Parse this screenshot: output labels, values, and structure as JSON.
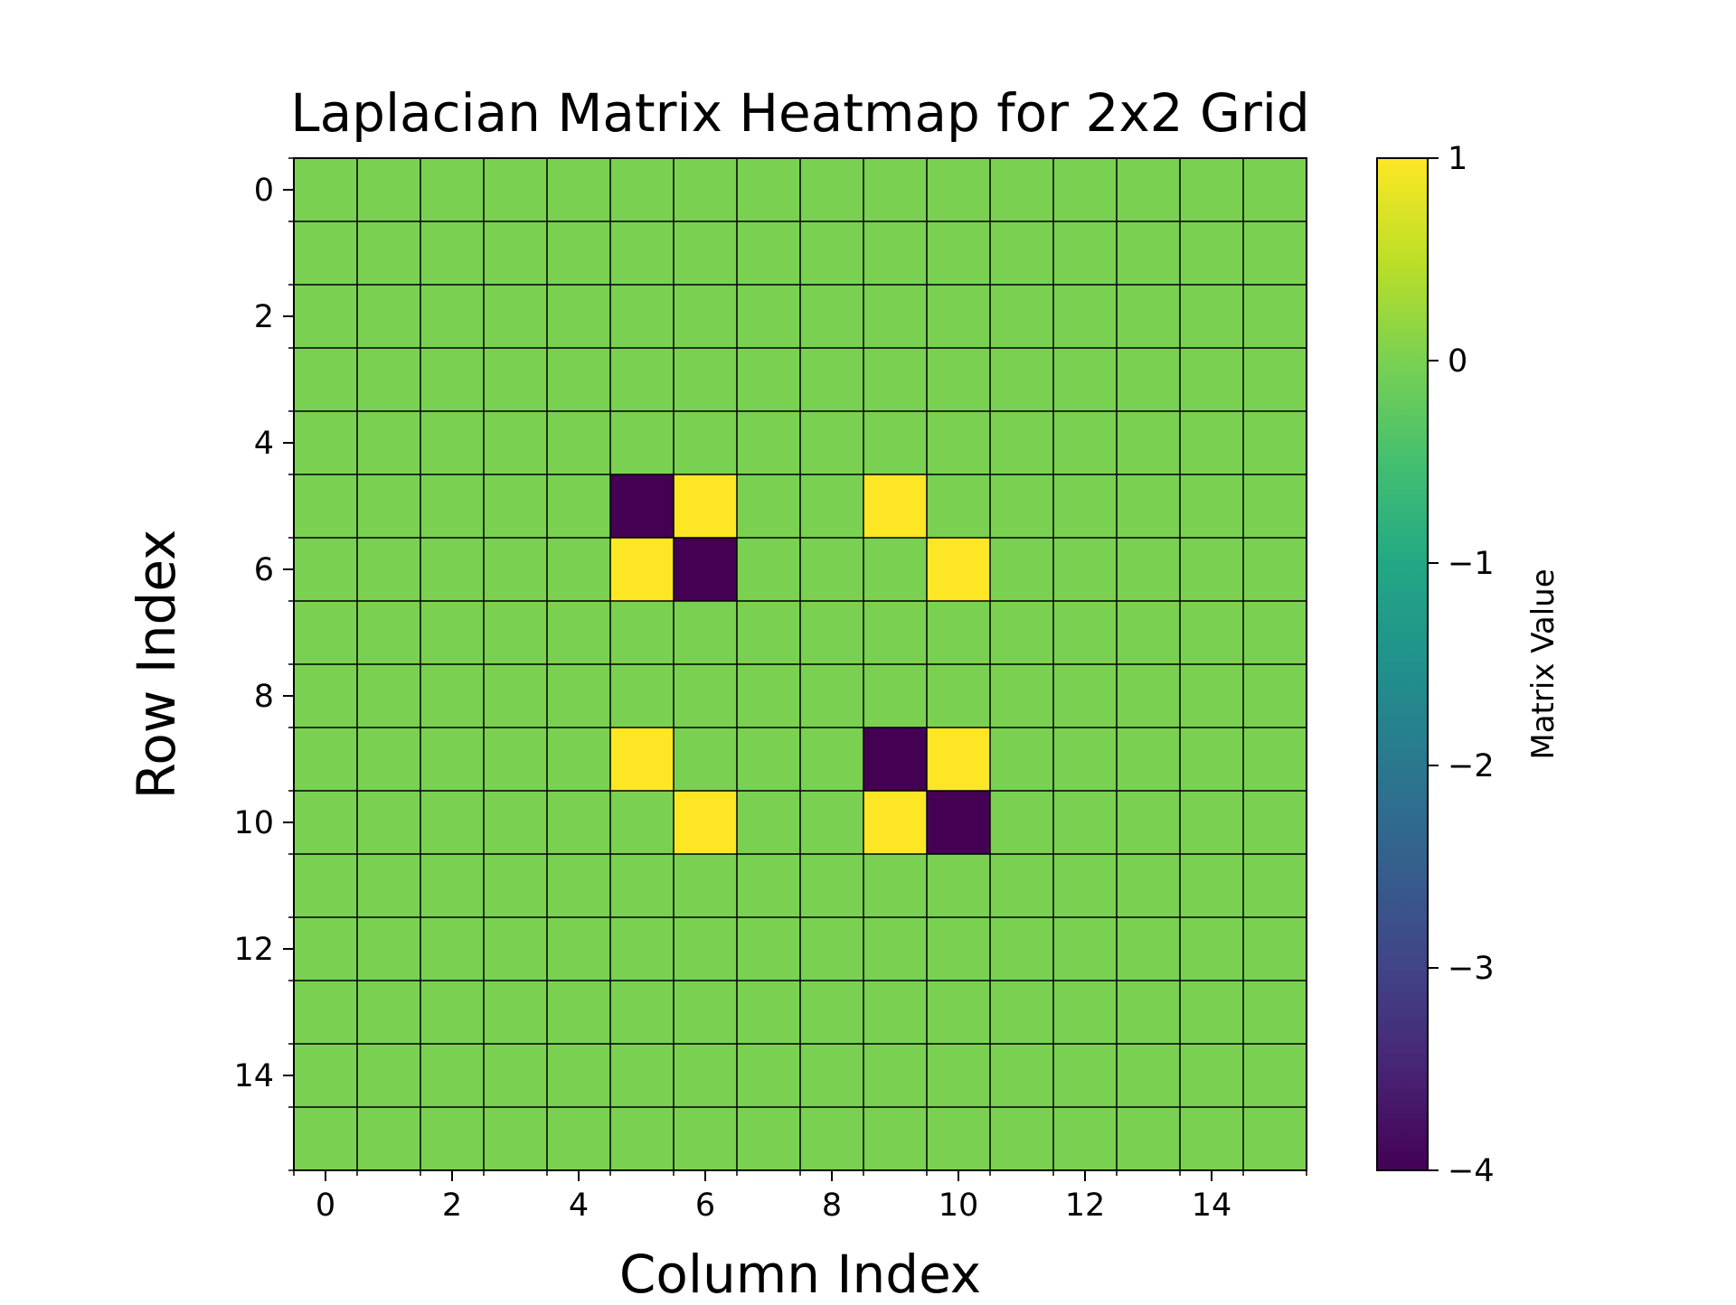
{
  "chart_data": {
    "type": "heatmap",
    "title": "Laplacian Matrix Heatmap for 2x2 Grid",
    "xlabel": "Column Index",
    "ylabel": "Row Index",
    "colorbar_label": "Matrix Value",
    "colormap": "viridis",
    "vmin": -4,
    "vmax": 1,
    "x_ticks": [
      0,
      2,
      4,
      6,
      8,
      10,
      12,
      14
    ],
    "y_ticks": [
      0,
      2,
      4,
      6,
      8,
      10,
      12,
      14
    ],
    "colorbar_ticks": [
      1,
      0,
      -1,
      -2,
      -3,
      -4
    ],
    "colorbar_tick_labels": [
      "1",
      "0",
      "−1",
      "−2",
      "−3",
      "−4"
    ],
    "grid": true,
    "matrix": [
      [
        0,
        0,
        0,
        0,
        0,
        0,
        0,
        0,
        0,
        0,
        0,
        0,
        0,
        0,
        0,
        0
      ],
      [
        0,
        0,
        0,
        0,
        0,
        0,
        0,
        0,
        0,
        0,
        0,
        0,
        0,
        0,
        0,
        0
      ],
      [
        0,
        0,
        0,
        0,
        0,
        0,
        0,
        0,
        0,
        0,
        0,
        0,
        0,
        0,
        0,
        0
      ],
      [
        0,
        0,
        0,
        0,
        0,
        0,
        0,
        0,
        0,
        0,
        0,
        0,
        0,
        0,
        0,
        0
      ],
      [
        0,
        0,
        0,
        0,
        0,
        0,
        0,
        0,
        0,
        0,
        0,
        0,
        0,
        0,
        0,
        0
      ],
      [
        0,
        0,
        0,
        0,
        0,
        -4,
        1,
        0,
        0,
        1,
        0,
        0,
        0,
        0,
        0,
        0
      ],
      [
        0,
        0,
        0,
        0,
        0,
        1,
        -4,
        0,
        0,
        0,
        1,
        0,
        0,
        0,
        0,
        0
      ],
      [
        0,
        0,
        0,
        0,
        0,
        0,
        0,
        0,
        0,
        0,
        0,
        0,
        0,
        0,
        0,
        0
      ],
      [
        0,
        0,
        0,
        0,
        0,
        0,
        0,
        0,
        0,
        0,
        0,
        0,
        0,
        0,
        0,
        0
      ],
      [
        0,
        0,
        0,
        0,
        0,
        1,
        0,
        0,
        0,
        -4,
        1,
        0,
        0,
        0,
        0,
        0
      ],
      [
        0,
        0,
        0,
        0,
        0,
        0,
        1,
        0,
        0,
        1,
        -4,
        0,
        0,
        0,
        0,
        0
      ],
      [
        0,
        0,
        0,
        0,
        0,
        0,
        0,
        0,
        0,
        0,
        0,
        0,
        0,
        0,
        0,
        0
      ],
      [
        0,
        0,
        0,
        0,
        0,
        0,
        0,
        0,
        0,
        0,
        0,
        0,
        0,
        0,
        0,
        0
      ],
      [
        0,
        0,
        0,
        0,
        0,
        0,
        0,
        0,
        0,
        0,
        0,
        0,
        0,
        0,
        0,
        0
      ],
      [
        0,
        0,
        0,
        0,
        0,
        0,
        0,
        0,
        0,
        0,
        0,
        0,
        0,
        0,
        0,
        0
      ],
      [
        0,
        0,
        0,
        0,
        0,
        0,
        0,
        0,
        0,
        0,
        0,
        0,
        0,
        0,
        0,
        0
      ]
    ]
  }
}
